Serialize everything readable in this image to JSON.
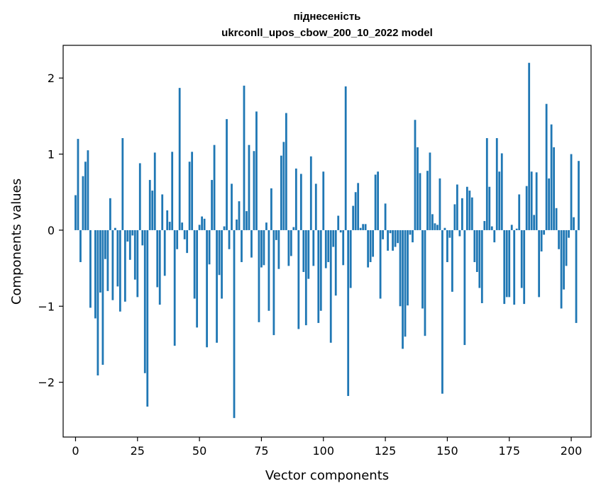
{
  "chart_data": {
    "type": "bar",
    "title": "піднесеність",
    "subtitle": "ukrconll_upos_cbow_200_10_2022 model",
    "xlabel": "Vector components",
    "ylabel": "Components values",
    "xlim": [
      -5,
      208
    ],
    "ylim": [
      -2.72,
      2.43
    ],
    "xticks": [
      0,
      25,
      50,
      75,
      100,
      125,
      150,
      175,
      200
    ],
    "yticks": [
      -2,
      -1,
      0,
      1,
      2
    ],
    "xtick_labels": [
      "0",
      "25",
      "50",
      "75",
      "100",
      "125",
      "150",
      "175",
      "200"
    ],
    "ytick_labels": [
      "−2",
      "−1",
      "0",
      "1",
      "2"
    ],
    "bar_color": "#1f77b4",
    "values": [
      0.46,
      1.2,
      -0.42,
      0.71,
      0.9,
      1.05,
      -1.02,
      0.0,
      -1.16,
      -1.91,
      -0.82,
      -1.77,
      -0.38,
      -0.8,
      0.42,
      -0.92,
      0.03,
      -0.74,
      -1.07,
      1.21,
      -0.94,
      -0.15,
      -0.39,
      -0.07,
      -0.65,
      -0.88,
      0.88,
      -0.2,
      -1.88,
      -2.32,
      0.66,
      0.52,
      1.02,
      -0.75,
      -0.98,
      0.47,
      -0.6,
      0.26,
      0.11,
      1.03,
      -1.52,
      -0.25,
      1.87,
      0.1,
      -0.12,
      -0.3,
      0.9,
      1.03,
      -0.9,
      -1.28,
      0.07,
      0.18,
      0.15,
      -1.54,
      -0.45,
      0.66,
      1.12,
      -1.48,
      -0.59,
      -0.9,
      0.05,
      1.46,
      -0.25,
      0.61,
      -2.47,
      0.14,
      0.38,
      -0.42,
      1.9,
      0.25,
      1.12,
      -0.36,
      1.04,
      1.56,
      -1.21,
      -0.49,
      -0.46,
      0.1,
      -1.06,
      0.55,
      -1.38,
      -0.13,
      -0.51,
      0.98,
      1.16,
      1.54,
      -0.47,
      -0.34,
      0.04,
      0.81,
      -1.3,
      0.74,
      -0.55,
      -1.25,
      -0.64,
      0.97,
      -0.47,
      0.61,
      -1.22,
      -1.06,
      0.77,
      -0.5,
      -0.42,
      -1.48,
      -0.22,
      -0.86,
      0.19,
      -0.03,
      -0.46,
      1.89,
      -2.18,
      -0.76,
      0.32,
      0.5,
      0.62,
      0.03,
      0.08,
      0.08,
      -0.49,
      -0.42,
      -0.35,
      0.73,
      0.77,
      -0.9,
      -0.12,
      0.35,
      -0.27,
      -0.04,
      -0.27,
      -0.22,
      -0.17,
      -1.0,
      -1.56,
      -1.4,
      -0.99,
      -0.06,
      -0.16,
      1.45,
      1.09,
      0.75,
      -1.03,
      -1.39,
      0.78,
      1.02,
      0.21,
      0.09,
      0.07,
      0.68,
      -2.15,
      0.03,
      -0.42,
      -0.1,
      -0.81,
      0.34,
      0.6,
      -0.08,
      0.42,
      -1.51,
      0.57,
      0.52,
      0.43,
      -0.42,
      -0.55,
      -0.76,
      -0.96,
      0.12,
      1.21,
      0.57,
      0.05,
      -0.16,
      1.21,
      0.77,
      1.01,
      -0.97,
      -0.88,
      -0.88,
      0.07,
      -0.98,
      0.02,
      0.47,
      -0.76,
      -0.97,
      0.58,
      2.2,
      0.77,
      0.2,
      0.76,
      -0.88,
      -0.28,
      -0.06,
      1.66,
      0.68,
      1.39,
      1.09,
      0.29,
      -0.25,
      -1.03,
      -0.78,
      -0.47,
      -0.1,
      1.0,
      0.17,
      -1.22,
      0.91
    ]
  }
}
